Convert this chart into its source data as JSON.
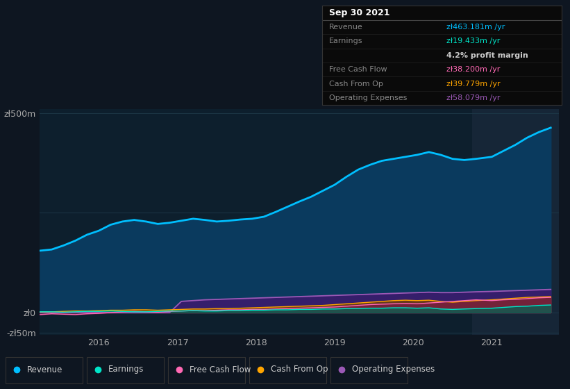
{
  "bg_color": "#0e1621",
  "plot_bg_color": "#0d1f2d",
  "highlight_bg_color": "#162637",
  "grid_color": "#1e3a4a",
  "ylabel_500": "zł500m",
  "ylabel_0": "zł0",
  "ylabel_neg50": "-zł50m",
  "x_ticks": [
    2016,
    2017,
    2018,
    2019,
    2020,
    2021
  ],
  "tooltip_date": "Sep 30 2021",
  "legend": [
    {
      "label": "Revenue",
      "color": "#00bfff"
    },
    {
      "label": "Earnings",
      "color": "#00e5c8"
    },
    {
      "label": "Free Cash Flow",
      "color": "#ff69b4"
    },
    {
      "label": "Cash From Op",
      "color": "#ffa500"
    },
    {
      "label": "Operating Expenses",
      "color": "#9b59b6"
    }
  ],
  "highlight_x_start": 2020.75,
  "highlight_x_end": 2021.85,
  "ylim": [
    -55,
    510
  ],
  "xlim": [
    2015.25,
    2021.85
  ],
  "revenue_color": "#00bfff",
  "revenue_fill": "#0a3a5e",
  "earnings_color": "#00e5c8",
  "fcf_color": "#ff69b4",
  "cashop_color": "#ffa500",
  "opex_color": "#9b59b6",
  "opex_fill": "#3d1a6e"
}
